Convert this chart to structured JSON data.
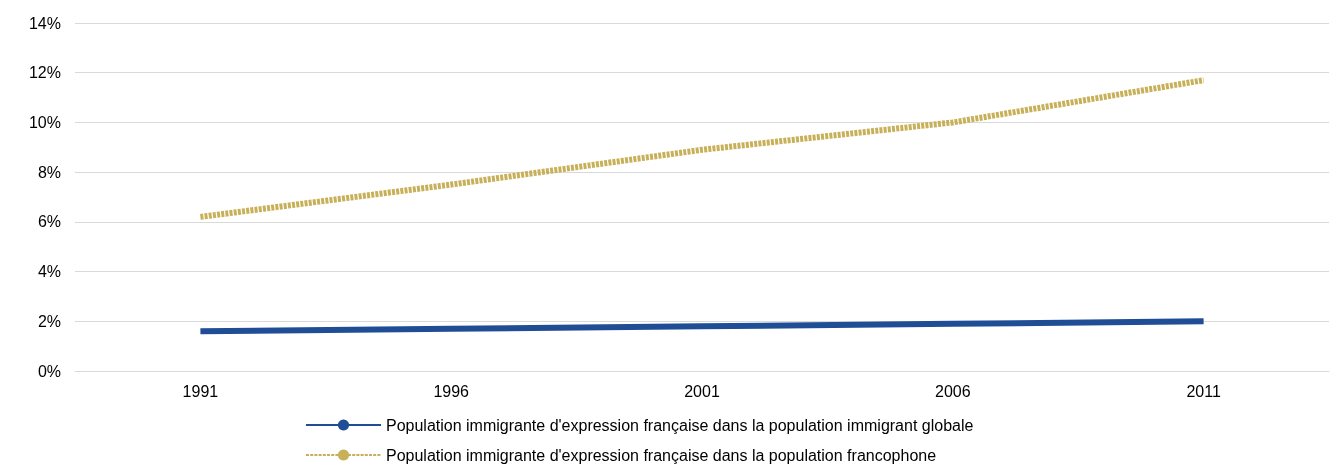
{
  "chart_data": {
    "type": "line",
    "categories": [
      "1991",
      "1996",
      "2001",
      "2006",
      "2011"
    ],
    "series": [
      {
        "name": "Population immigrante d'expression française dans la population immigrant globale",
        "color": "#1f4e96",
        "values": [
          1.6,
          1.7,
          1.8,
          1.9,
          2.0
        ],
        "line_style": "solid"
      },
      {
        "name": "Population immigrante d'expression française dans la population francophone",
        "color": "#c8b058",
        "values": [
          6.2,
          7.5,
          8.9,
          10.0,
          11.7
        ],
        "line_style": "dashed"
      }
    ],
    "ylim": [
      0,
      14
    ],
    "yticks": [
      {
        "value": 0,
        "label": "0%"
      },
      {
        "value": 2,
        "label": "2%"
      },
      {
        "value": 4,
        "label": "4%"
      },
      {
        "value": 6,
        "label": "6%"
      },
      {
        "value": 8,
        "label": "8%"
      },
      {
        "value": 10,
        "label": "10%"
      },
      {
        "value": 12,
        "label": "12%"
      },
      {
        "value": 14,
        "label": "14%"
      }
    ],
    "grid": "y",
    "legend": "bottom",
    "marker": "none"
  }
}
